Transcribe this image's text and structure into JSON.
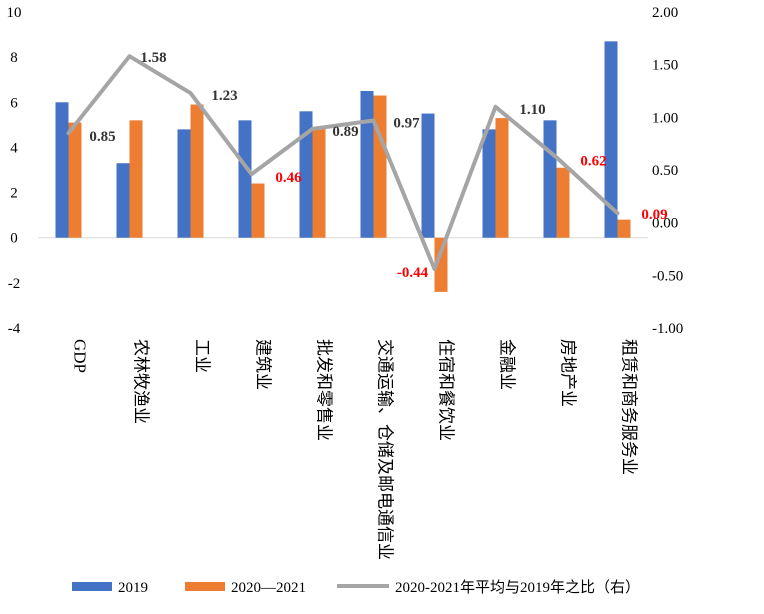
{
  "chart_data": {
    "type": "bar",
    "categories": [
      "GDP",
      "农林牧渔业",
      "工业",
      "建筑业",
      "批发和零售业",
      "交通运输、仓储及邮电通信业",
      "住宿和餐饮业",
      "金融业",
      "房地产业",
      "租赁和商务服务业"
    ],
    "series": [
      {
        "name": "2019",
        "type": "bar",
        "axis": "left",
        "color": "#4472C4",
        "values": [
          6.0,
          3.3,
          4.8,
          5.2,
          5.6,
          6.5,
          5.5,
          4.8,
          5.2,
          8.7
        ]
      },
      {
        "name": "2020—2021",
        "type": "bar",
        "axis": "left",
        "color": "#ED7D31",
        "values": [
          5.1,
          5.2,
          5.9,
          2.4,
          4.9,
          6.3,
          -2.4,
          5.3,
          3.1,
          0.8
        ]
      },
      {
        "name": "2020-2021年平均与2019年之比（右）",
        "type": "line",
        "axis": "right",
        "color": "#A5A5A5",
        "values": [
          0.85,
          1.58,
          1.23,
          0.46,
          0.89,
          0.97,
          -0.44,
          1.1,
          0.62,
          0.09
        ]
      }
    ],
    "data_labels": [
      "0.85",
      "1.58",
      "1.23",
      "0.46",
      "0.89",
      "0.97",
      "-0.44",
      "1.10",
      "0.62",
      "0.09"
    ],
    "data_label_colors": [
      "#333333",
      "#333333",
      "#333333",
      "#FF0000",
      "#333333",
      "#333333",
      "#FF0000",
      "#333333",
      "#FF0000",
      "#FF0000"
    ],
    "left_axis": {
      "ylim": [
        -4,
        10
      ],
      "ticks": [
        "-4",
        "-2",
        "0",
        "2",
        "4",
        "6",
        "8",
        "10"
      ]
    },
    "right_axis": {
      "ylim": [
        -1.0,
        2.0
      ],
      "ticks": [
        "-1.00",
        "-0.50",
        "0.00",
        "0.50",
        "1.00",
        "1.50",
        "2.00"
      ]
    },
    "grid": false,
    "legend_position": "bottom"
  }
}
